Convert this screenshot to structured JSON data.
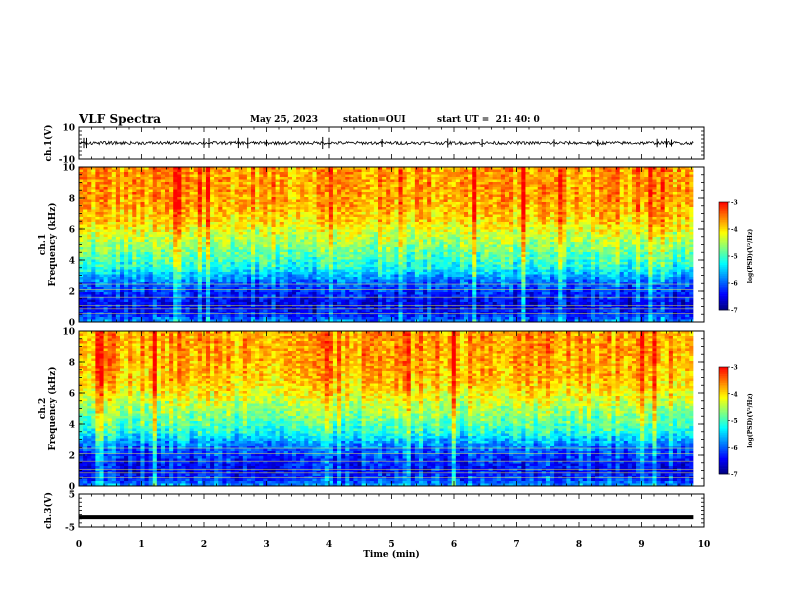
{
  "header": {
    "title": "VLF Spectra",
    "date": "May 25, 2023",
    "station": "station=OUI",
    "start": "start UT =  21: 40: 0"
  },
  "colors": {
    "trace": "#000000",
    "colormap": [
      "#00007f",
      "#0000ff",
      "#0080ff",
      "#00ffff",
      "#80ff80",
      "#ffff00",
      "#ff8000",
      "#ff0000",
      "#ffffff"
    ]
  },
  "chart_data": [
    {
      "type": "line",
      "panel": "ch1-waveform",
      "ylabel": "ch.1(V)",
      "xlim": [
        0,
        10
      ],
      "ylim": [
        -10,
        10
      ],
      "yticks": [
        -10,
        10
      ],
      "x_range_covered": [
        0,
        9.83
      ],
      "baseline": 0,
      "noise_amplitude": 1,
      "spike_amplitude_max": 4,
      "spikes_at_min": [
        0.08,
        0.12,
        2.0,
        2.08,
        2.55,
        2.7,
        3.0,
        3.9,
        4.0,
        4.85,
        5.9,
        6.45,
        7.6,
        8.3,
        9.25,
        9.4,
        9.48
      ]
    },
    {
      "type": "heatmap",
      "panel": "ch1-spectrogram",
      "ylabel": "ch.1\nFrequency (kHz)",
      "xlim": [
        0,
        10
      ],
      "ylim": [
        0,
        10
      ],
      "yticks": [
        0,
        2,
        4,
        6,
        8,
        10
      ],
      "x_range_covered": [
        0,
        9.83
      ],
      "frequency_profile_khz": [
        0,
        0.5,
        1,
        1.5,
        2,
        2.5,
        3,
        3.5,
        4,
        4.5,
        5,
        5.5,
        6,
        6.5,
        7,
        7.5,
        8,
        8.5,
        9,
        9.5,
        10
      ],
      "log_psd_profile": [
        -5.8,
        -6.3,
        -6.5,
        -6.4,
        -6.2,
        -6.0,
        -5.6,
        -5.2,
        -5.0,
        -4.8,
        -4.6,
        -4.4,
        -4.2,
        -4.0,
        -3.9,
        -3.8,
        -3.75,
        -3.7,
        -3.7,
        -3.7,
        -3.7
      ],
      "colorbar": {
        "label": "log(PSD)(V²/Hz)",
        "min": -7,
        "max": -3,
        "ticks": [
          "-3",
          "-4",
          "-5",
          "-6",
          "-7"
        ]
      }
    },
    {
      "type": "heatmap",
      "panel": "ch2-spectrogram",
      "ylabel": "ch.2\nFrequency (kHz)",
      "xlim": [
        0,
        10
      ],
      "ylim": [
        0,
        10
      ],
      "yticks": [
        0,
        2,
        4,
        6,
        8,
        10
      ],
      "x_range_covered": [
        0,
        9.83
      ],
      "frequency_profile_khz": [
        0,
        0.5,
        1,
        1.5,
        2,
        2.5,
        3,
        3.5,
        4,
        4.5,
        5,
        5.5,
        6,
        6.5,
        7,
        7.5,
        8,
        8.5,
        9,
        9.5,
        10
      ],
      "log_psd_profile": [
        -5.7,
        -6.2,
        -6.4,
        -6.3,
        -6.1,
        -5.9,
        -5.5,
        -5.1,
        -4.9,
        -4.7,
        -4.5,
        -4.3,
        -4.1,
        -3.95,
        -3.85,
        -3.8,
        -3.75,
        -3.7,
        -3.7,
        -3.7,
        -3.7
      ],
      "colorbar": {
        "label": "log(PSD)(V²/Hz)",
        "min": -7,
        "max": -3,
        "ticks": [
          "-3",
          "-4",
          "-5",
          "-6",
          "-7"
        ]
      }
    },
    {
      "type": "line",
      "panel": "ch3-waveform",
      "ylabel": "ch.3(V)",
      "xlabel": "Time (min)",
      "xlim": [
        0,
        10
      ],
      "ylim": [
        -5,
        5
      ],
      "yticks": [
        -5,
        5
      ],
      "xticks": [
        "0",
        "1",
        "2",
        "3",
        "4",
        "5",
        "6",
        "7",
        "8",
        "9",
        "10"
      ],
      "x_range_covered": [
        0,
        9.83
      ],
      "constant_value": -2
    }
  ]
}
